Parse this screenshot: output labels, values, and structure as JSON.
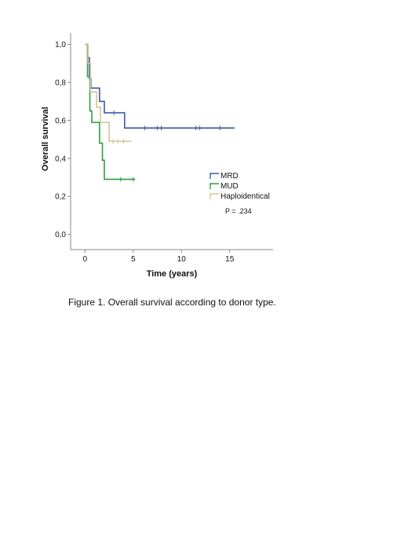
{
  "chart_data": {
    "type": "line",
    "xlabel": "Time (years)",
    "ylabel": "Overall survival",
    "xlim": [
      -1.5,
      19.5
    ],
    "ylim": [
      -0.08,
      1.06
    ],
    "xticks": [
      0,
      5,
      10,
      15
    ],
    "xtick_labels": [
      "0",
      "5",
      "10",
      "15"
    ],
    "yticks": [
      0.0,
      0.2,
      0.4,
      0.6,
      0.8,
      1.0
    ],
    "ytick_labels": [
      "0,0",
      "0,2",
      "0,4",
      "0,6",
      "0,8",
      "1,0"
    ],
    "grid": false,
    "legend_position": "right",
    "annotation": "P = .234",
    "series": [
      {
        "name": "MRD",
        "color": "#3d5aa6",
        "steps": [
          [
            0.0,
            1.0
          ],
          [
            0.3,
            0.93
          ],
          [
            0.45,
            0.82
          ],
          [
            0.6,
            0.77
          ],
          [
            1.5,
            0.7
          ],
          [
            2.0,
            0.64
          ],
          [
            4.1,
            0.56
          ],
          [
            15.5,
            0.56
          ]
        ],
        "censor_times": [
          3.0,
          6.2,
          7.5,
          7.9,
          11.5,
          11.9,
          14.0
        ]
      },
      {
        "name": "MUD",
        "color": "#2e9e3e",
        "steps": [
          [
            0.0,
            1.0
          ],
          [
            0.25,
            0.83
          ],
          [
            0.5,
            0.65
          ],
          [
            0.7,
            0.59
          ],
          [
            1.5,
            0.48
          ],
          [
            1.8,
            0.39
          ],
          [
            2.0,
            0.29
          ],
          [
            5.2,
            0.29
          ]
        ],
        "censor_times": [
          3.7,
          5.0
        ]
      },
      {
        "name": "Haploidentical",
        "color": "#d6c496",
        "steps": [
          [
            0.0,
            1.0
          ],
          [
            0.3,
            0.9
          ],
          [
            0.55,
            0.75
          ],
          [
            1.2,
            0.67
          ],
          [
            1.6,
            0.59
          ],
          [
            2.5,
            0.49
          ],
          [
            4.8,
            0.49
          ]
        ],
        "censor_times": [
          2.9,
          3.4,
          4.0
        ]
      }
    ]
  },
  "caption": "Figure 1. Overall survival  according to donor type."
}
